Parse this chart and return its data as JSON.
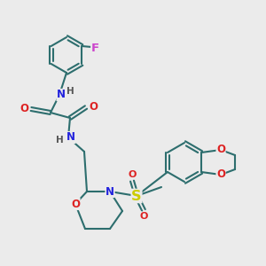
{
  "bg_color": "#ebebeb",
  "bond_color": "#2d6e6e",
  "bond_width": 1.5,
  "atom_colors": {
    "N": "#2222dd",
    "O": "#dd2222",
    "S": "#cccc00",
    "F": "#cc44cc",
    "H": "#555555",
    "C": "#2d6e6e"
  },
  "font_size": 8.5,
  "fig_size": [
    3.0,
    3.0
  ],
  "dpi": 100
}
